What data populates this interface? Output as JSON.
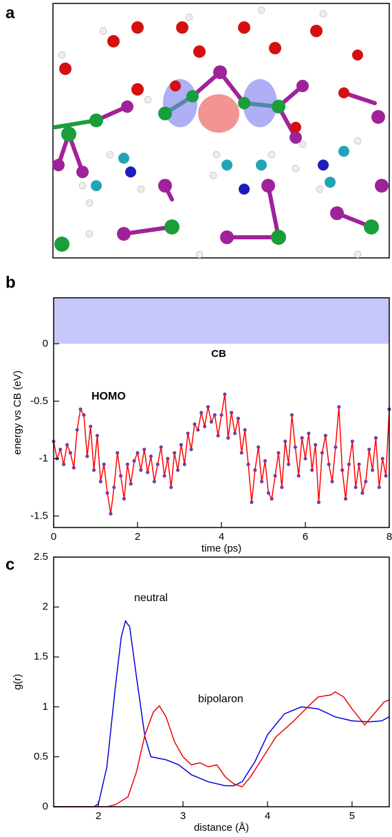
{
  "image_panel": {
    "label": "a"
  },
  "chart_data": [
    {
      "type": "line",
      "label": "b",
      "xlabel": "time (ps)",
      "ylabel": "energy vs CB (eV)",
      "xlim": [
        0,
        8
      ],
      "ylim": [
        -1.6,
        0.4
      ],
      "xticks": [
        0,
        2,
        4,
        6,
        8
      ],
      "yticks": [
        0,
        -0.5,
        -1,
        -1.5
      ],
      "cb_shade": {
        "from": 0,
        "color": "#c6c6fb",
        "label": "CB"
      },
      "markers": true,
      "marker_color": "#7a3d9a",
      "x": [
        0.0,
        0.08,
        0.16,
        0.24,
        0.32,
        0.4,
        0.48,
        0.56,
        0.64,
        0.72,
        0.8,
        0.88,
        0.96,
        1.04,
        1.12,
        1.2,
        1.28,
        1.36,
        1.44,
        1.52,
        1.6,
        1.68,
        1.76,
        1.84,
        1.92,
        2.0,
        2.08,
        2.16,
        2.24,
        2.32,
        2.4,
        2.48,
        2.56,
        2.64,
        2.72,
        2.8,
        2.88,
        2.96,
        3.04,
        3.12,
        3.2,
        3.28,
        3.36,
        3.44,
        3.52,
        3.6,
        3.68,
        3.76,
        3.84,
        3.92,
        4.0,
        4.08,
        4.16,
        4.24,
        4.32,
        4.4,
        4.48,
        4.56,
        4.64,
        4.72,
        4.8,
        4.88,
        4.96,
        5.04,
        5.12,
        5.2,
        5.28,
        5.36,
        5.44,
        5.52,
        5.6,
        5.68,
        5.76,
        5.84,
        5.92,
        6.0,
        6.08,
        6.16,
        6.24,
        6.32,
        6.4,
        6.48,
        6.56,
        6.64,
        6.72,
        6.8,
        6.88,
        6.96,
        7.04,
        7.12,
        7.2,
        7.28,
        7.36,
        7.44,
        7.52,
        7.6,
        7.68,
        7.76,
        7.84,
        7.92,
        8.0
      ],
      "series": [
        {
          "name": "HOMO",
          "color": "#ff0000",
          "values": [
            -0.85,
            -1.0,
            -0.92,
            -1.05,
            -0.88,
            -0.95,
            -1.08,
            -0.75,
            -0.57,
            -0.62,
            -0.98,
            -0.72,
            -1.1,
            -0.8,
            -1.2,
            -1.05,
            -1.3,
            -1.48,
            -1.25,
            -0.95,
            -1.15,
            -1.35,
            -1.05,
            -1.22,
            -1.02,
            -0.95,
            -1.1,
            -0.92,
            -1.12,
            -0.98,
            -1.2,
            -1.05,
            -0.9,
            -1.15,
            -1.0,
            -1.25,
            -0.95,
            -1.1,
            -0.88,
            -1.05,
            -0.78,
            -0.92,
            -0.7,
            -0.75,
            -0.6,
            -0.72,
            -0.55,
            -0.68,
            -0.62,
            -0.8,
            -0.62,
            -0.44,
            -0.82,
            -0.6,
            -0.78,
            -0.65,
            -0.95,
            -0.75,
            -1.05,
            -1.38,
            -1.1,
            -0.9,
            -1.2,
            -1.02,
            -1.3,
            -1.35,
            -1.15,
            -0.95,
            -1.25,
            -0.85,
            -1.05,
            -0.62,
            -0.9,
            -1.15,
            -0.82,
            -1.0,
            -0.78,
            -1.1,
            -0.88,
            -1.38,
            -0.95,
            -0.8,
            -1.05,
            -1.2,
            -0.9,
            -0.55,
            -1.1,
            -1.35,
            -1.05,
            -0.85,
            -1.25,
            -1.05,
            -1.3,
            -1.2,
            -0.92,
            -1.1,
            -0.82,
            -1.25,
            -1.0,
            -1.15,
            -0.57
          ]
        }
      ]
    },
    {
      "type": "line",
      "label": "c",
      "xlabel": "distance (Å)",
      "ylabel": "g(r)",
      "xlim": [
        1.47,
        5.44
      ],
      "ylim": [
        0,
        2.5
      ],
      "xticks": [
        2,
        3,
        4,
        5
      ],
      "yticks": [
        0,
        0.5,
        1,
        1.5,
        2,
        2.5
      ],
      "series": [
        {
          "name": "neutral",
          "color": "#0000dd",
          "x": [
            1.47,
            1.95,
            2.0,
            2.1,
            2.2,
            2.27,
            2.32,
            2.37,
            2.45,
            2.55,
            2.62,
            2.8,
            2.95,
            3.1,
            3.3,
            3.5,
            3.6,
            3.7,
            3.85,
            4.0,
            4.2,
            4.4,
            4.6,
            4.8,
            5.0,
            5.2,
            5.35,
            5.44
          ],
          "values": [
            0,
            0,
            0.03,
            0.4,
            1.2,
            1.7,
            1.86,
            1.8,
            1.3,
            0.7,
            0.5,
            0.47,
            0.42,
            0.32,
            0.25,
            0.21,
            0.21,
            0.25,
            0.45,
            0.72,
            0.93,
            1.0,
            0.98,
            0.9,
            0.86,
            0.85,
            0.86,
            0.9
          ]
        },
        {
          "name": "bipolaron",
          "color": "#ee0000",
          "x": [
            1.47,
            2.1,
            2.2,
            2.35,
            2.45,
            2.55,
            2.65,
            2.72,
            2.8,
            2.9,
            3.0,
            3.1,
            3.2,
            3.3,
            3.4,
            3.5,
            3.6,
            3.7,
            3.8,
            3.95,
            4.1,
            4.3,
            4.5,
            4.6,
            4.75,
            4.8,
            4.9,
            5.0,
            5.15,
            5.3,
            5.38,
            5.44
          ],
          "values": [
            0,
            0,
            0.02,
            0.1,
            0.35,
            0.72,
            0.95,
            1.01,
            0.9,
            0.65,
            0.5,
            0.42,
            0.44,
            0.4,
            0.42,
            0.3,
            0.23,
            0.2,
            0.3,
            0.5,
            0.7,
            0.85,
            1.02,
            1.1,
            1.12,
            1.15,
            1.1,
            0.98,
            0.82,
            0.97,
            1.05,
            1.07
          ]
        }
      ]
    }
  ]
}
